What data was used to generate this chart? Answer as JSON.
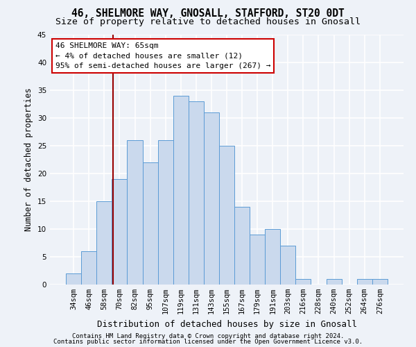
{
  "title1": "46, SHELMORE WAY, GNOSALL, STAFFORD, ST20 0DT",
  "title2": "Size of property relative to detached houses in Gnosall",
  "xlabel": "Distribution of detached houses by size in Gnosall",
  "ylabel": "Number of detached properties",
  "categories": [
    "34sqm",
    "46sqm",
    "58sqm",
    "70sqm",
    "82sqm",
    "95sqm",
    "107sqm",
    "119sqm",
    "131sqm",
    "143sqm",
    "155sqm",
    "167sqm",
    "179sqm",
    "191sqm",
    "203sqm",
    "216sqm",
    "228sqm",
    "240sqm",
    "252sqm",
    "264sqm",
    "276sqm"
  ],
  "values": [
    2,
    6,
    15,
    19,
    26,
    22,
    26,
    34,
    33,
    31,
    25,
    14,
    9,
    10,
    7,
    1,
    0,
    1,
    0,
    1,
    1
  ],
  "bar_color": "#cad9ed",
  "bar_edge_color": "#5b9bd5",
  "bar_width": 1.0,
  "ylim": [
    0,
    45
  ],
  "yticks": [
    0,
    5,
    10,
    15,
    20,
    25,
    30,
    35,
    40,
    45
  ],
  "red_line_x": 2.583,
  "annotation_text_line1": "46 SHELMORE WAY: 65sqm",
  "annotation_text_line2": "← 4% of detached houses are smaller (12)",
  "annotation_text_line3": "95% of semi-detached houses are larger (267) →",
  "footer1": "Contains HM Land Registry data © Crown copyright and database right 2024.",
  "footer2": "Contains public sector information licensed under the Open Government Licence v3.0.",
  "background_color": "#eef2f8",
  "grid_color": "#ffffff",
  "title_fontsize": 10.5,
  "subtitle_fontsize": 9.5,
  "tick_fontsize": 7.5,
  "ylabel_fontsize": 8.5,
  "xlabel_fontsize": 9,
  "footer_fontsize": 6.5,
  "ann_fontsize": 8
}
